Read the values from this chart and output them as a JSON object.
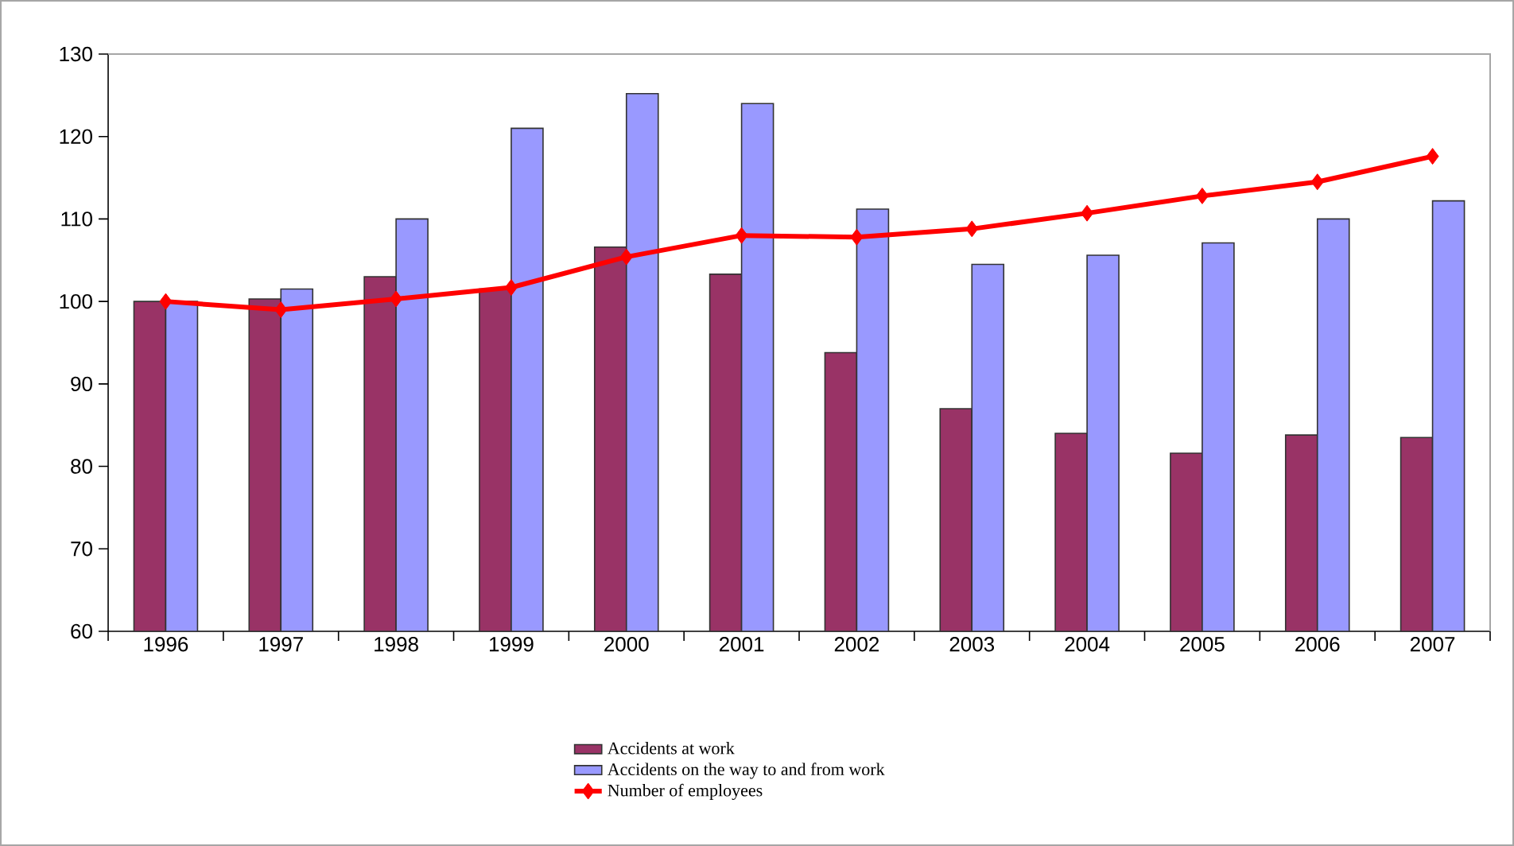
{
  "chart_data": {
    "type": "bar",
    "categories": [
      "1996",
      "1997",
      "1998",
      "1999",
      "2000",
      "2001",
      "2002",
      "2003",
      "2004",
      "2005",
      "2006",
      "2007"
    ],
    "series": [
      {
        "name": "Accidents at work",
        "color": "#993366",
        "values": [
          100,
          100.3,
          103,
          101.5,
          106.6,
          103.3,
          93.8,
          87,
          84,
          81.6,
          83.8,
          83.5
        ]
      },
      {
        "name": "Accidents on the way to and from work",
        "color": "#9999ff",
        "values": [
          100,
          101.5,
          110,
          121,
          125.2,
          124,
          111.2,
          104.5,
          105.6,
          107.1,
          110,
          112.2
        ]
      },
      {
        "name": "Number of employees",
        "type": "line",
        "color": "#ff0000",
        "marker": "diamond",
        "values": [
          100,
          99,
          100.3,
          101.7,
          105.4,
          108,
          107.8,
          108.8,
          110.7,
          112.8,
          114.5,
          117.6
        ]
      }
    ],
    "ylim": [
      60,
      130
    ],
    "yticks": [
      60,
      70,
      80,
      90,
      100,
      110,
      120,
      130
    ],
    "legend": "bottom"
  }
}
